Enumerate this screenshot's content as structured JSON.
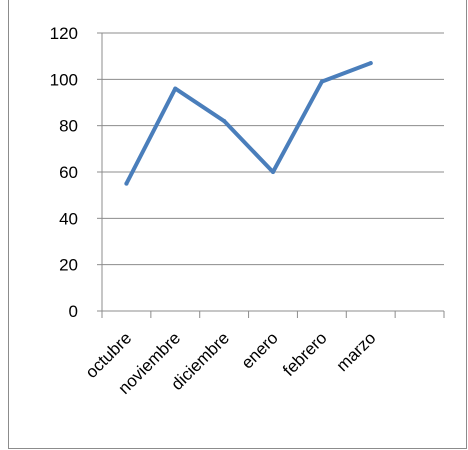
{
  "chart_data": {
    "type": "line",
    "categories": [
      "octubre",
      "noviembre",
      "diciembre",
      "enero",
      "febrero",
      "marzo"
    ],
    "series": [
      {
        "values": [
          55,
          96,
          82,
          60,
          99,
          107
        ]
      }
    ],
    "ylim": [
      0,
      120
    ],
    "yticks": [
      0,
      20,
      40,
      60,
      80,
      100,
      120
    ],
    "grid": true,
    "legend": "none",
    "line_color": "#4a7ebb",
    "grid_color": "#8c8c8c"
  }
}
